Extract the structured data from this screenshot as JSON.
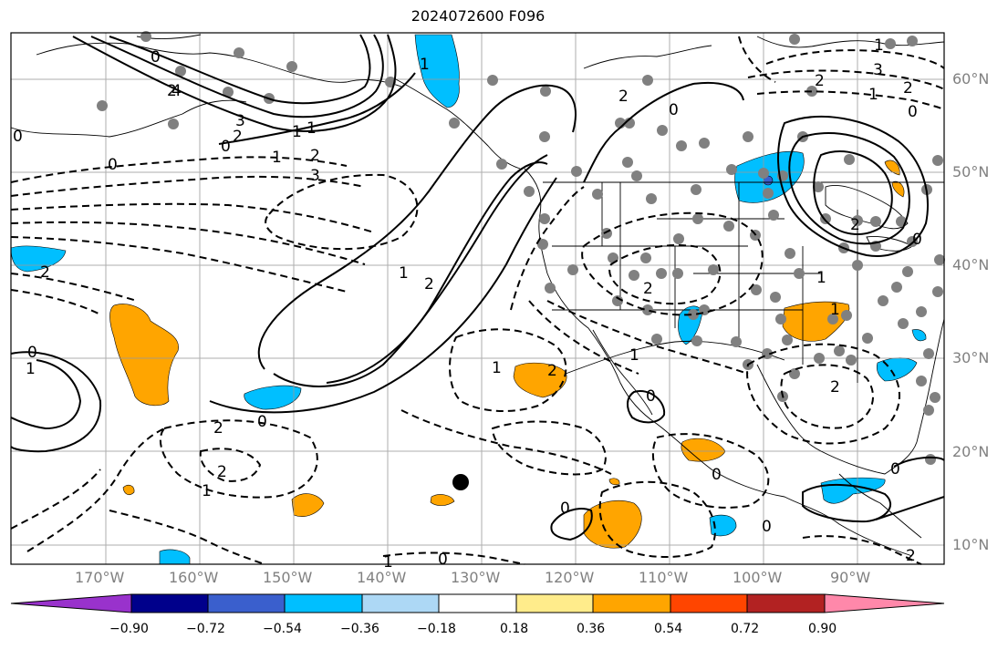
{
  "title": "2024072600 F096",
  "lat_labels": [
    "60°N",
    "50°N",
    "40°N",
    "30°N",
    "20°N",
    "10°N"
  ],
  "lon_labels": [
    "170°W",
    "160°W",
    "150°W",
    "140°W",
    "130°W",
    "120°W",
    "110°W",
    "100°W",
    "90°W"
  ],
  "colorbar": {
    "ticks": [
      "−0.90",
      "−0.72",
      "−0.54",
      "−0.36",
      "−0.18",
      "0.18",
      "0.36",
      "0.54",
      "0.72",
      "0.90"
    ],
    "colors": [
      "#9932cc",
      "#00008b",
      "#3a5fcd",
      "#00bfff",
      "#add8f5",
      "#ffffff",
      "#ffec8b",
      "#ffa500",
      "#ff4500",
      "#b22222",
      "#ff88aa"
    ]
  },
  "contour_labels": [
    "0",
    "2",
    "4",
    "3",
    "2",
    "1",
    "0",
    "1",
    "2",
    "3",
    "0",
    "1",
    "2",
    "1",
    "1",
    "2",
    "0",
    "1",
    "2",
    "2",
    "0",
    "3",
    "2",
    "1",
    "0",
    "2",
    "1",
    "0",
    "2",
    "1",
    "0",
    "2",
    "1",
    "2",
    "0",
    "2",
    "1",
    "0",
    "0",
    "1",
    "2",
    "0",
    "0",
    "1",
    "0",
    "2",
    "0",
    "1"
  ],
  "shading_colors": {
    "positive": "#ffa500",
    "negative": "#00bfff"
  }
}
